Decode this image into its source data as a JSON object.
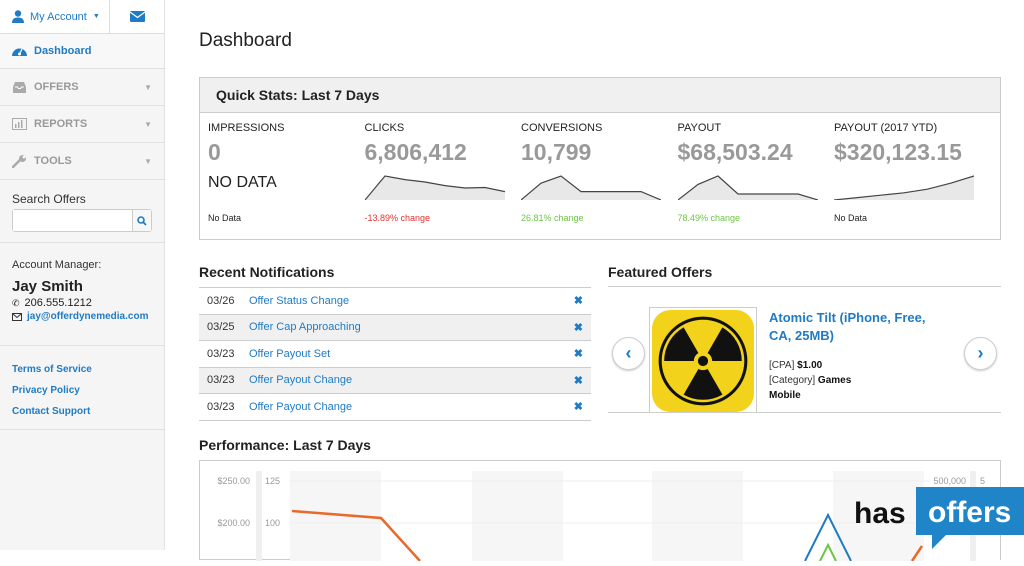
{
  "sidebar": {
    "account_label": "My Account",
    "nav": [
      {
        "label": "Dashboard",
        "icon": "dashboard-icon"
      },
      {
        "label": "OFFERS",
        "icon": "inbox-icon"
      },
      {
        "label": "REPORTS",
        "icon": "bar-chart-icon"
      },
      {
        "label": "TOOLS",
        "icon": "wrench-icon"
      }
    ],
    "search_label": "Search Offers",
    "search_value": "",
    "account_manager_label": "Account Manager:",
    "manager_name": "Jay Smith",
    "manager_phone": "206.555.1212",
    "manager_email": "jay@offerdynemedia.com",
    "links": [
      "Terms of Service",
      "Privacy Policy",
      "Contact Support"
    ]
  },
  "page_title": "Dashboard",
  "quick_stats": {
    "title": "Quick Stats: Last 7 Days",
    "stats": [
      {
        "label": "IMPRESSIONS",
        "value": "0",
        "no_data": "NO DATA",
        "change": "No Data",
        "change_color": "#222222",
        "sparkline": []
      },
      {
        "label": "CLICKS",
        "value": "6,806,412",
        "change": "-13.89% change",
        "change_color": "#e8312f",
        "sparkline": [
          0,
          100,
          85,
          75,
          60,
          50,
          52,
          35
        ]
      },
      {
        "label": "CONVERSIONS",
        "value": "10,799",
        "change": "26.81% change",
        "change_color": "#6cc644",
        "sparkline": [
          0,
          70,
          100,
          35,
          35,
          35,
          35,
          0
        ]
      },
      {
        "label": "PAYOUT",
        "value": "$68,503.24",
        "change": "78.49% change",
        "change_color": "#6cc644",
        "sparkline": [
          0,
          65,
          100,
          25,
          25,
          25,
          25,
          0
        ]
      },
      {
        "label": "PAYOUT (2017 YTD)",
        "value": "$320,123.15",
        "change": "No Data",
        "change_color": "#222222",
        "sparkline": [
          0,
          10,
          20,
          30,
          45,
          70,
          100
        ]
      }
    ]
  },
  "notifications": {
    "title": "Recent Notifications",
    "items": [
      {
        "date": "03/26",
        "text": "Offer Status Change"
      },
      {
        "date": "03/25",
        "text": "Offer Cap Approaching"
      },
      {
        "date": "03/23",
        "text": "Offer Payout Set"
      },
      {
        "date": "03/23",
        "text": "Offer Payout Change"
      },
      {
        "date": "03/23",
        "text": "Offer Payout Change"
      }
    ]
  },
  "featured": {
    "title": "Featured Offers",
    "offer_title": "Atomic Tilt (iPhone, Free, CA, 25MB)",
    "cpa_label": "[CPA]",
    "cpa_value": "$1.00",
    "category_label": "[Category]",
    "category_value": "Games",
    "platform": "Mobile"
  },
  "performance": {
    "title": "Performance: Last 7 Days",
    "axis_left_ticks": [
      "$250.00",
      "$200.00"
    ],
    "axis_left2_ticks": [
      "125",
      "100"
    ],
    "axis_right_ticks": [
      "500,000"
    ],
    "axis_right2_ticks": [
      "5"
    ]
  },
  "logo": {
    "text1": "has",
    "text2": "offers"
  },
  "colors": {
    "accent": "#1f7bc4",
    "orange": "#e8692a",
    "negative": "#e8312f",
    "positive": "#6cc644"
  }
}
